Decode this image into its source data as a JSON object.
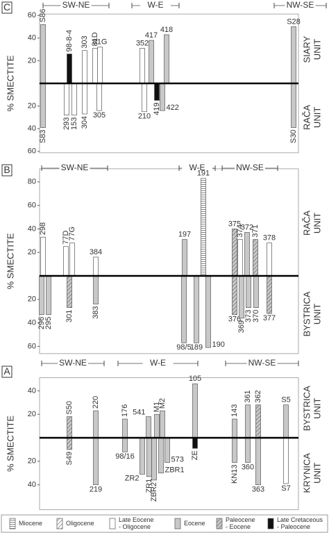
{
  "chart_data": [
    {
      "type": "bar",
      "panel": "C",
      "ylabel": "% SMECTITE",
      "sections": [
        "SW-NE",
        "W-E",
        "NW-SE"
      ],
      "upper": {
        "unit": [
          "SIARY",
          "UNIT"
        ],
        "ylim": [
          0,
          60
        ],
        "yticks": [
          20,
          40,
          60
        ],
        "bars": [
          {
            "label": "S86",
            "value": 52,
            "age": 3
          },
          {
            "label": "98-8-4",
            "value": 26,
            "age": 5
          },
          {
            "label": "303",
            "value": 29,
            "age": 2
          },
          {
            "label": "81D",
            "value": 31,
            "age": 2
          },
          {
            "label": "81G",
            "value": 32,
            "age": 2
          },
          {
            "label": "352",
            "value": 31,
            "age": 2
          },
          {
            "label": "417",
            "value": 38,
            "age": 3
          },
          {
            "label": "418",
            "value": 43,
            "age": 3
          },
          {
            "label": "S28",
            "value": 50,
            "age": 3
          }
        ]
      },
      "lower": {
        "unit": [
          "RAČA",
          "UNIT"
        ],
        "ylim": [
          0,
          60
        ],
        "yticks": [
          20,
          40,
          60
        ],
        "bars": [
          {
            "label": "S83",
            "value": 39,
            "age": 3
          },
          {
            "label": "293",
            "value": 28,
            "age": 2
          },
          {
            "label": "153",
            "value": 28,
            "age": 2
          },
          {
            "label": "304",
            "value": 27,
            "age": 2
          },
          {
            "label": "305",
            "value": 24,
            "age": 2
          },
          {
            "label": "210",
            "value": 25,
            "age": 2
          },
          {
            "label": "419",
            "value": 15,
            "age": 5
          },
          {
            "label": "422",
            "value": 24,
            "age": 3
          },
          {
            "label": "S30",
            "value": 39,
            "age": 3
          }
        ]
      }
    },
    {
      "type": "bar",
      "panel": "B",
      "ylabel": "% SMECTITE",
      "sections": [
        "SW-NE",
        "W-E",
        "NW-SE"
      ],
      "upper": {
        "unit": [
          "RAČA",
          "UNIT"
        ],
        "ylim": [
          0,
          90
        ],
        "yticks": [
          20,
          40,
          60,
          80
        ],
        "bars": [
          {
            "label": "298",
            "value": 33,
            "age": 2
          },
          {
            "label": "77D",
            "value": 25,
            "age": 2
          },
          {
            "label": "77G",
            "value": 28,
            "age": 2
          },
          {
            "label": "384",
            "value": 16,
            "age": 2
          },
          {
            "label": "197",
            "value": 31,
            "age": 3
          },
          {
            "label": "191",
            "value": 83,
            "age": 0
          },
          {
            "label": "375",
            "value": 40,
            "age": 4
          },
          {
            "label": "374",
            "value": 31,
            "age": 2
          },
          {
            "label": "372",
            "value": 37,
            "age": 3
          },
          {
            "label": "371",
            "value": 31,
            "age": 4
          },
          {
            "label": "378",
            "value": 28,
            "age": 2
          }
        ]
      },
      "lower": {
        "unit": [
          "BYSTRICA",
          "UNIT"
        ],
        "ylim": [
          0,
          65
        ],
        "yticks": [
          20,
          40,
          60
        ],
        "bars": [
          {
            "label": "296",
            "value": 33,
            "age": 3
          },
          {
            "label": "295",
            "value": 33,
            "age": 3
          },
          {
            "label": "301",
            "value": 27,
            "age": 4
          },
          {
            "label": "383",
            "value": 24,
            "age": 3
          },
          {
            "label": "98/5",
            "value": 57,
            "age": 3
          },
          {
            "label": "189",
            "value": 57,
            "age": 3
          },
          {
            "label": "190",
            "value": 61,
            "age": 3
          },
          {
            "label": "376",
            "value": 33,
            "age": 4
          },
          {
            "label": "369",
            "value": 36,
            "age": 3
          },
          {
            "label": "373",
            "value": 27,
            "age": 3
          },
          {
            "label": "370",
            "value": 27,
            "age": 3
          },
          {
            "label": "377",
            "value": 32,
            "age": 4
          }
        ]
      }
    },
    {
      "type": "bar",
      "panel": "A",
      "ylabel": "% SMECTITE",
      "sections": [
        "SW-NE",
        "W-E",
        "NW-SE"
      ],
      "upper": {
        "unit": [
          "BYSTRICA",
          "UNIT"
        ],
        "ylim": [
          0,
          50
        ],
        "yticks": [
          20,
          40
        ],
        "bars": [
          {
            "label": "S50",
            "value": 18,
            "age": 4
          },
          {
            "label": "220",
            "value": 23,
            "age": 3
          },
          {
            "label": "176",
            "value": 16,
            "age": 3
          },
          {
            "label": "541",
            "value": 18,
            "age": 3
          },
          {
            "label": "M1",
            "value": 20,
            "age": 3
          },
          {
            "label": "M2",
            "value": 23,
            "age": 3
          },
          {
            "label": "105",
            "value": 46,
            "age": 3
          },
          {
            "label": "143",
            "value": 16,
            "age": 3
          },
          {
            "label": "361",
            "value": 28,
            "age": 3
          },
          {
            "label": "362",
            "value": 28,
            "age": 4
          },
          {
            "label": "S5",
            "value": 28,
            "age": 3
          }
        ]
      },
      "lower": {
        "unit": [
          "KRYNICA",
          "UNIT"
        ],
        "ylim": [
          0,
          60
        ],
        "yticks": [
          20,
          40
        ],
        "bars": [
          {
            "label": "S49",
            "value": 10,
            "age": 4
          },
          {
            "label": "219",
            "value": 40,
            "age": 3
          },
          {
            "label": "98/16",
            "value": 12,
            "age": 3
          },
          {
            "label": "ZR2",
            "value": 31,
            "age": 3
          },
          {
            "label": "ZR1",
            "value": 33,
            "age": 3
          },
          {
            "label": "ZBR2",
            "value": 36,
            "age": 3
          },
          {
            "label": "ZBR1",
            "value": 30,
            "age": 3
          },
          {
            "label": "573",
            "value": 21,
            "age": 3
          },
          {
            "label": "ZE",
            "value": 9,
            "age": 5
          },
          {
            "label": "KN13",
            "value": 21,
            "age": 3
          },
          {
            "label": "360",
            "value": 21,
            "age": 3
          },
          {
            "label": "363",
            "value": 40,
            "age": 3
          },
          {
            "label": "S7",
            "value": 39,
            "age": 2
          }
        ]
      }
    }
  ],
  "legend": [
    {
      "name": [
        "Miocene"
      ],
      "pattern": "stripes"
    },
    {
      "name": [
        "Oligocene"
      ],
      "pattern": "hatch"
    },
    {
      "name": [
        "Late Eocene",
        "- Oligocene"
      ],
      "pattern": "white"
    },
    {
      "name": [
        "Eocene"
      ],
      "pattern": "gray"
    },
    {
      "name": [
        "Paleocene",
        "- Eocene"
      ],
      "pattern": "gray-hatch"
    },
    {
      "name": [
        "Late Cretaceous",
        "- Paleocene"
      ],
      "pattern": "black"
    }
  ]
}
